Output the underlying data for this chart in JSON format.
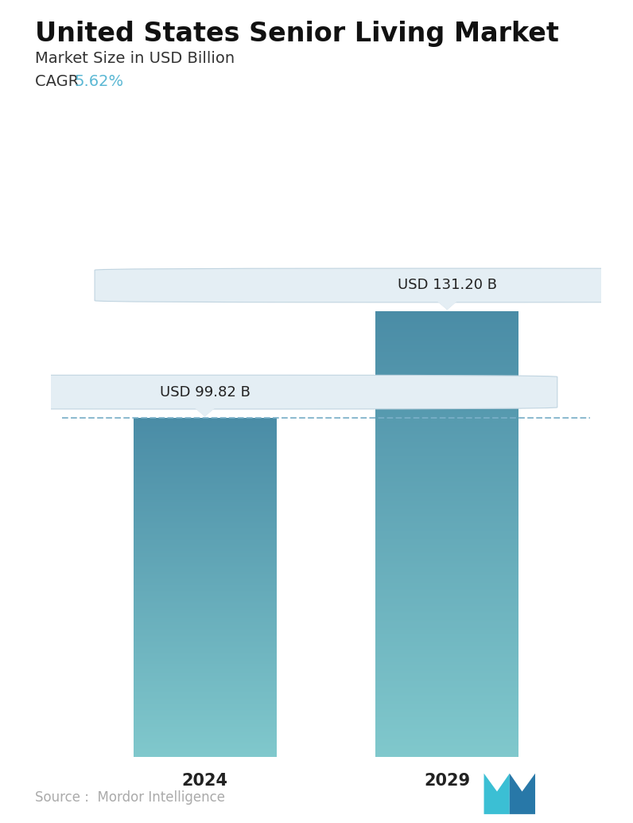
{
  "title": "United States Senior Living Market",
  "subtitle": "Market Size in USD Billion",
  "cagr_label": "CAGR ",
  "cagr_value": "5.62%",
  "cagr_color": "#5bb8d4",
  "categories": [
    "2024",
    "2029"
  ],
  "values": [
    99.82,
    131.2
  ],
  "labels": [
    "USD 99.82 B",
    "USD 131.20 B"
  ],
  "bar_top_color": "#4a8ca6",
  "bar_bottom_color": "#80c8cc",
  "dashed_line_color": "#7ab0c8",
  "source_text": "Source :  Mordor Intelligence",
  "source_color": "#aaaaaa",
  "background_color": "#ffffff",
  "title_fontsize": 24,
  "subtitle_fontsize": 14,
  "cagr_fontsize": 14,
  "label_fontsize": 13,
  "tick_fontsize": 15,
  "source_fontsize": 12,
  "box_facecolor": "#e4eef4",
  "box_edgecolor": "#c0d4e0"
}
